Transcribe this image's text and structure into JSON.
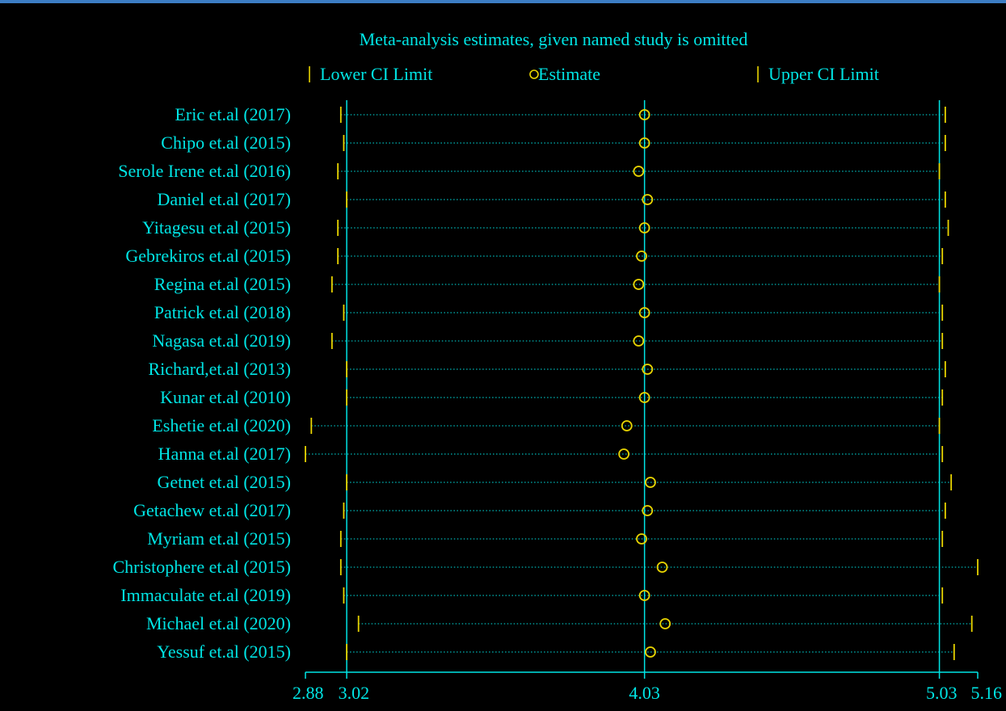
{
  "colors": {
    "background": "#000000",
    "text": "#00e5e5",
    "axis": "#00e5e5",
    "marker": "#e8d400",
    "dotted": "#00e5e5",
    "window_border": "#3c7dc4"
  },
  "chart_data": {
    "type": "scatter",
    "title": "Meta-analysis estimates, given named study is omitted",
    "legend": {
      "placement": "top",
      "items": [
        {
          "label": "Lower CI Limit",
          "marker": "vertical-bar"
        },
        {
          "label": "Estimate",
          "marker": "circle"
        },
        {
          "label": "Upper CI Limit",
          "marker": "vertical-bar"
        }
      ]
    },
    "x_ticks": [
      "2.88",
      "3.02",
      "4.03",
      "5.03",
      "5.16"
    ],
    "x_tick_values": [
      2.88,
      3.02,
      4.03,
      5.03,
      5.16
    ],
    "xlim": [
      2.88,
      5.16
    ],
    "reference_lines": [
      3.02,
      4.03,
      5.03
    ],
    "grid": false,
    "studies": [
      {
        "name": "Eric et.al (2017)",
        "lower": 3.0,
        "estimate": 4.03,
        "upper": 5.05
      },
      {
        "name": "Chipo et.al (2015)",
        "lower": 3.01,
        "estimate": 4.03,
        "upper": 5.05
      },
      {
        "name": "Serole Irene et.al (2016)",
        "lower": 2.99,
        "estimate": 4.01,
        "upper": 5.03
      },
      {
        "name": "Daniel  et.al (2017)",
        "lower": 3.02,
        "estimate": 4.04,
        "upper": 5.05
      },
      {
        "name": "Yitagesu et.al (2015)",
        "lower": 2.99,
        "estimate": 4.03,
        "upper": 5.06
      },
      {
        "name": "Gebrekiros et.al (2015)",
        "lower": 2.99,
        "estimate": 4.02,
        "upper": 5.04
      },
      {
        "name": "Regina et.al (2015)",
        "lower": 2.97,
        "estimate": 4.01,
        "upper": 5.03
      },
      {
        "name": "Patrick et.al (2018)",
        "lower": 3.01,
        "estimate": 4.03,
        "upper": 5.04
      },
      {
        "name": "Nagasa et.al (2019)",
        "lower": 2.97,
        "estimate": 4.01,
        "upper": 5.04
      },
      {
        "name": "Richard,et.al (2013)",
        "lower": 3.02,
        "estimate": 4.04,
        "upper": 5.05
      },
      {
        "name": "Kunar et.al (2010)",
        "lower": 3.02,
        "estimate": 4.03,
        "upper": 5.04
      },
      {
        "name": "Eshetie et.al (2020)",
        "lower": 2.9,
        "estimate": 3.97,
        "upper": 5.03
      },
      {
        "name": "Hanna et.al (2017)",
        "lower": 2.88,
        "estimate": 3.96,
        "upper": 5.04
      },
      {
        "name": "Getnet et.al (2015)",
        "lower": 3.02,
        "estimate": 4.05,
        "upper": 5.07
      },
      {
        "name": "Getachew et.al (2017)",
        "lower": 3.01,
        "estimate": 4.04,
        "upper": 5.05
      },
      {
        "name": "Myriam et.al (2015)",
        "lower": 3.0,
        "estimate": 4.02,
        "upper": 5.04
      },
      {
        "name": "Christophere et.al (2015)",
        "lower": 3.0,
        "estimate": 4.09,
        "upper": 5.16
      },
      {
        "name": "Immaculate et.al (2019)",
        "lower": 3.01,
        "estimate": 4.03,
        "upper": 5.04
      },
      {
        "name": "Michael et.al (2020)",
        "lower": 3.06,
        "estimate": 4.1,
        "upper": 5.14
      },
      {
        "name": "Yessuf et.al (2015)",
        "lower": 3.02,
        "estimate": 4.05,
        "upper": 5.08
      }
    ]
  }
}
